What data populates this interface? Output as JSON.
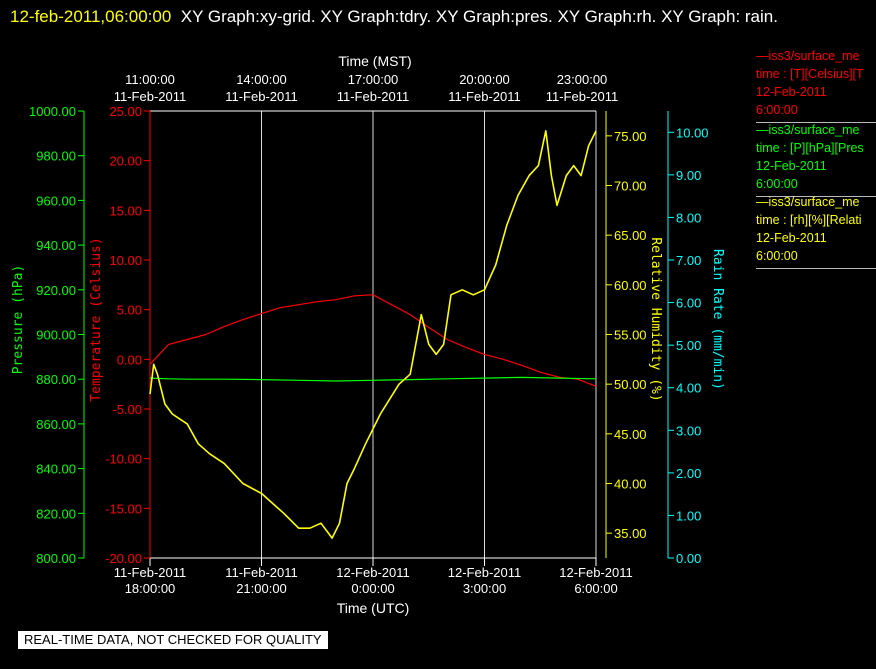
{
  "title": {
    "timestamp": "12-feb-2011,06:00:00",
    "text": "XY Graph:xy-grid.  XY Graph:tdry.  XY Graph:pres.  XY Graph:rh.  XY Graph: rain."
  },
  "colors": {
    "temperature": "#ff0000",
    "pressure": "#00ff00",
    "humidity": "#ffff00",
    "rain": "#00ffff"
  },
  "legend": [
    {
      "line": "—iss3/surface_me",
      "units": "time : [T][Celsius][T",
      "date": "12-Feb-2011",
      "time": "6:00:00",
      "color": "#ff0000"
    },
    {
      "line": "—iss3/surface_me",
      "units": "time : [P][hPa][Pres",
      "date": "12-Feb-2011",
      "time": "6:00:00",
      "color": "#00ff00"
    },
    {
      "line": "—iss3/surface_me",
      "units": "time : [rh][%][Relati",
      "date": "12-Feb-2011",
      "time": "6:00:00",
      "color": "#ffff00"
    }
  ],
  "footer": "REAL-TIME DATA, NOT CHECKED FOR QUALITY",
  "chart_data": {
    "type": "line",
    "top_axis": {
      "label": "Time (MST)",
      "ticks": [
        {
          "time": "11:00:00",
          "date": "11-Feb-2011"
        },
        {
          "time": "14:00:00",
          "date": "11-Feb-2011"
        },
        {
          "time": "17:00:00",
          "date": "11-Feb-2011"
        },
        {
          "time": "20:00:00",
          "date": "11-Feb-2011"
        },
        {
          "time": "23:00:00",
          "date": "11-Feb-2011"
        }
      ]
    },
    "bottom_axis": {
      "label": "Time (UTC)",
      "range_hours": [
        0,
        12
      ],
      "ticks": [
        {
          "date": "11-Feb-2011",
          "time": "18:00:00"
        },
        {
          "date": "11-Feb-2011",
          "time": "21:00:00"
        },
        {
          "date": "12-Feb-2011",
          "time": "0:00:00"
        },
        {
          "date": "12-Feb-2011",
          "time": "3:00:00"
        },
        {
          "date": "12-Feb-2011",
          "time": "6:00:00"
        }
      ]
    },
    "axes": {
      "pressure": {
        "label": "Pressure (hPa)",
        "range": [
          800,
          1000
        ],
        "ticks": [
          "800.00",
          "820.00",
          "840.00",
          "860.00",
          "880.00",
          "900.00",
          "920.00",
          "940.00",
          "960.00",
          "980.00",
          "1000.00"
        ]
      },
      "temperature": {
        "label": "Temperature (Celsius)",
        "range": [
          -20,
          25
        ],
        "ticks": [
          "-20.00",
          "-15.00",
          "-10.00",
          "-5.00",
          "0.00",
          "5.00",
          "10.00",
          "15.00",
          "20.00",
          "25.00"
        ]
      },
      "humidity": {
        "label": "Relative Humidity (%)",
        "range": [
          32.5,
          77.5
        ],
        "ticks": [
          "35.00",
          "40.00",
          "45.00",
          "50.00",
          "55.00",
          "60.00",
          "65.00",
          "70.00",
          "75.00"
        ]
      },
      "rain": {
        "label": "Rain Rate (mm/min)",
        "range": [
          0,
          10.5
        ],
        "ticks": [
          "0.00",
          "1.00",
          "2.00",
          "3.00",
          "4.00",
          "5.00",
          "6.00",
          "7.00",
          "8.00",
          "9.00",
          "10.00"
        ]
      }
    },
    "grid": true,
    "series": [
      {
        "name": "iss3/surface_me Temperature",
        "axis": "temperature",
        "x": [
          0,
          0.5,
          1,
          1.5,
          2,
          2.5,
          3,
          3.5,
          4,
          4.5,
          5,
          5.5,
          6,
          6.5,
          7,
          7.5,
          8,
          8.5,
          9,
          9.5,
          10,
          10.5,
          11,
          11.5,
          12
        ],
        "y": [
          -0.5,
          1.5,
          2,
          2.5,
          3.3,
          4,
          4.6,
          5.2,
          5.5,
          5.8,
          6,
          6.4,
          6.5,
          5.5,
          4.5,
          3.2,
          2,
          1.2,
          0.5,
          0,
          -0.6,
          -1.3,
          -1.8,
          -2,
          -2.7
        ]
      },
      {
        "name": "iss3/surface_me Pressure",
        "axis": "pressure",
        "x": [
          0,
          0.5,
          1,
          2,
          3,
          4,
          5,
          6,
          7,
          8,
          9,
          10,
          11,
          12
        ],
        "y": [
          880.5,
          880.2,
          880,
          880,
          879.8,
          879.5,
          879.2,
          879.5,
          879.8,
          880.2,
          880.5,
          880.8,
          880.5,
          880.2
        ]
      },
      {
        "name": "iss3/surface_me Relative Humidity",
        "axis": "humidity",
        "x": [
          0,
          0.1,
          0.2,
          0.4,
          0.6,
          0.8,
          1,
          1.3,
          1.6,
          2,
          2.5,
          3,
          3.3,
          3.6,
          4,
          4.3,
          4.6,
          4.9,
          5.1,
          5.3,
          5.5,
          5.8,
          6.2,
          6.7,
          7,
          7.3,
          7.5,
          7.7,
          7.9,
          8.1,
          8.4,
          8.7,
          9,
          9.3,
          9.6,
          9.9,
          10.2,
          10.45,
          10.65,
          10.8,
          10.95,
          11.2,
          11.4,
          11.6,
          11.8,
          12
        ],
        "y": [
          49,
          52,
          51,
          48,
          47,
          46.5,
          46,
          44,
          43,
          42,
          40,
          39,
          38,
          37,
          35.5,
          35.5,
          36,
          34.5,
          36,
          40,
          41.5,
          44,
          47,
          50,
          51,
          57,
          54,
          53,
          54,
          59,
          59.5,
          59,
          59.5,
          62,
          66,
          69,
          71,
          72,
          75.5,
          71,
          68,
          71,
          72,
          71,
          74,
          75.5
        ]
      },
      {
        "name": "Rain Rate",
        "axis": "rain",
        "x": [],
        "y": []
      }
    ]
  }
}
